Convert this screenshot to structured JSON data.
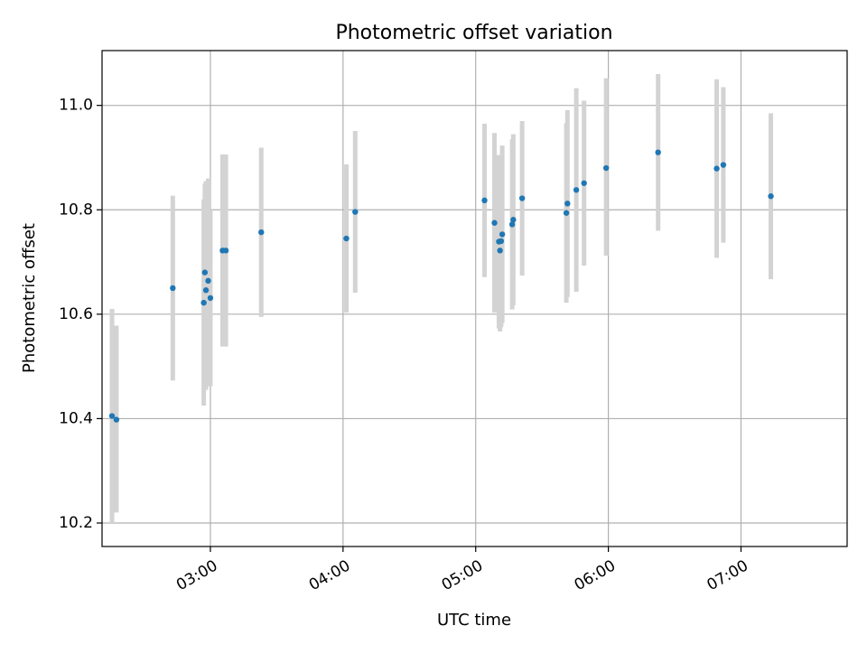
{
  "chart_data": {
    "type": "scatter",
    "title": "Photometric offset variation",
    "xlabel": "UTC time",
    "ylabel": "Photometric offset",
    "x_unit": "UTC time (HH:MM)",
    "xlim": [
      "02:11",
      "07:48"
    ],
    "ylim": [
      10.155,
      11.105
    ],
    "x_ticks": [
      "03:00",
      "04:00",
      "05:00",
      "06:00",
      "07:00"
    ],
    "y_ticks": [
      "10.2",
      "10.4",
      "10.6",
      "10.8",
      "11.0"
    ],
    "grid": true,
    "legend": "none",
    "colors": {
      "marker": "#1f77b4",
      "errorbar": "#d3d3d3",
      "grid": "#b0b0b0"
    },
    "points": [
      {
        "t": "02:15:30",
        "y": 10.405,
        "lo": 10.2,
        "hi": 10.61
      },
      {
        "t": "02:17:30",
        "y": 10.398,
        "lo": 10.22,
        "hi": 10.578
      },
      {
        "t": "02:43:00",
        "y": 10.65,
        "lo": 10.473,
        "hi": 10.827
      },
      {
        "t": "02:57:00",
        "y": 10.622,
        "lo": 10.425,
        "hi": 10.82
      },
      {
        "t": "02:57:30",
        "y": 10.68,
        "lo": 10.51,
        "hi": 10.85
      },
      {
        "t": "02:58:00",
        "y": 10.646,
        "lo": 10.455,
        "hi": 10.855
      },
      {
        "t": "02:59:00",
        "y": 10.664,
        "lo": 10.468,
        "hi": 10.86
      },
      {
        "t": "03:00:00",
        "y": 10.631,
        "lo": 10.462,
        "hi": 10.8
      },
      {
        "t": "03:05:30",
        "y": 10.722,
        "lo": 10.538,
        "hi": 10.906
      },
      {
        "t": "03:07:00",
        "y": 10.722,
        "lo": 10.538,
        "hi": 10.906
      },
      {
        "t": "03:23:00",
        "y": 10.757,
        "lo": 10.595,
        "hi": 10.919
      },
      {
        "t": "04:01:30",
        "y": 10.745,
        "lo": 10.603,
        "hi": 10.887
      },
      {
        "t": "04:05:30",
        "y": 10.796,
        "lo": 10.641,
        "hi": 10.951
      },
      {
        "t": "05:04:00",
        "y": 10.818,
        "lo": 10.671,
        "hi": 10.965
      },
      {
        "t": "05:08:30",
        "y": 10.775,
        "lo": 10.603,
        "hi": 10.947
      },
      {
        "t": "05:10:30",
        "y": 10.739,
        "lo": 10.573,
        "hi": 10.905
      },
      {
        "t": "05:11:00",
        "y": 10.722,
        "lo": 10.567,
        "hi": 10.877
      },
      {
        "t": "05:11:30",
        "y": 10.74,
        "lo": 10.575,
        "hi": 10.905
      },
      {
        "t": "05:12:00",
        "y": 10.753,
        "lo": 10.583,
        "hi": 10.923
      },
      {
        "t": "05:16:30",
        "y": 10.772,
        "lo": 10.609,
        "hi": 10.935
      },
      {
        "t": "05:17:00",
        "y": 10.781,
        "lo": 10.617,
        "hi": 10.945
      },
      {
        "t": "05:21:00",
        "y": 10.822,
        "lo": 10.674,
        "hi": 10.97
      },
      {
        "t": "05:41:00",
        "y": 10.794,
        "lo": 10.622,
        "hi": 10.966
      },
      {
        "t": "05:41:30",
        "y": 10.812,
        "lo": 10.633,
        "hi": 10.991
      },
      {
        "t": "05:45:30",
        "y": 10.838,
        "lo": 10.643,
        "hi": 11.033
      },
      {
        "t": "05:49:00",
        "y": 10.851,
        "lo": 10.693,
        "hi": 11.009
      },
      {
        "t": "05:59:00",
        "y": 10.88,
        "lo": 10.712,
        "hi": 11.052
      },
      {
        "t": "06:22:30",
        "y": 10.91,
        "lo": 10.76,
        "hi": 11.06
      },
      {
        "t": "06:49:00",
        "y": 10.879,
        "lo": 10.708,
        "hi": 11.05
      },
      {
        "t": "06:52:00",
        "y": 10.886,
        "lo": 10.737,
        "hi": 11.035
      },
      {
        "t": "07:13:30",
        "y": 10.826,
        "lo": 10.667,
        "hi": 10.985
      }
    ]
  }
}
